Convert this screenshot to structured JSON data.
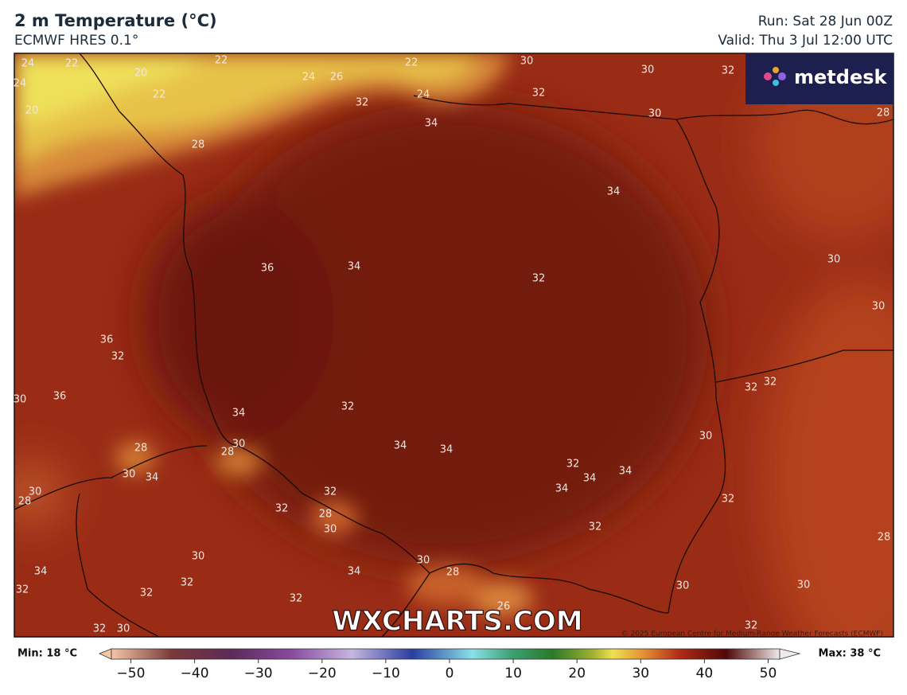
{
  "header": {
    "title": "2 m Temperature (°C)",
    "subtitle": "ECMWF HRES 0.1°",
    "run": "Run: Sat 28 Jun 00Z",
    "valid": "Valid: Thu 3 Jul 12:00 UTC"
  },
  "logo": "metdesk",
  "watermark": "WXCHARTS.COM",
  "copyright": "© 2025 European Centre for Medium-Range Weather Forecasts (ECMWF)",
  "contour_labels": [
    22,
    24,
    24,
    20,
    22,
    22,
    20,
    24,
    26,
    22,
    30,
    30,
    32,
    32,
    32,
    24,
    34,
    30,
    28,
    28,
    34,
    30,
    36,
    34,
    32,
    30,
    36,
    32,
    36,
    30,
    32,
    32,
    34,
    32,
    30,
    30,
    28,
    28,
    34,
    34,
    30,
    34,
    32,
    34,
    34,
    34,
    30,
    28,
    32,
    32,
    28,
    32,
    30,
    32,
    28,
    30,
    30,
    34,
    34,
    28,
    32,
    32,
    32,
    30,
    30,
    32,
    26,
    32,
    30,
    32
  ],
  "colorbar": {
    "min_label": "Min: 18 °C",
    "max_label": "Max: 38 °C",
    "ticks": [
      {
        "value": -50,
        "label": "−50"
      },
      {
        "value": -40,
        "label": "−40"
      },
      {
        "value": -30,
        "label": "−30"
      },
      {
        "value": -20,
        "label": "−20"
      },
      {
        "value": -10,
        "label": "−10"
      },
      0,
      10,
      20,
      30,
      40,
      50
    ]
  }
}
